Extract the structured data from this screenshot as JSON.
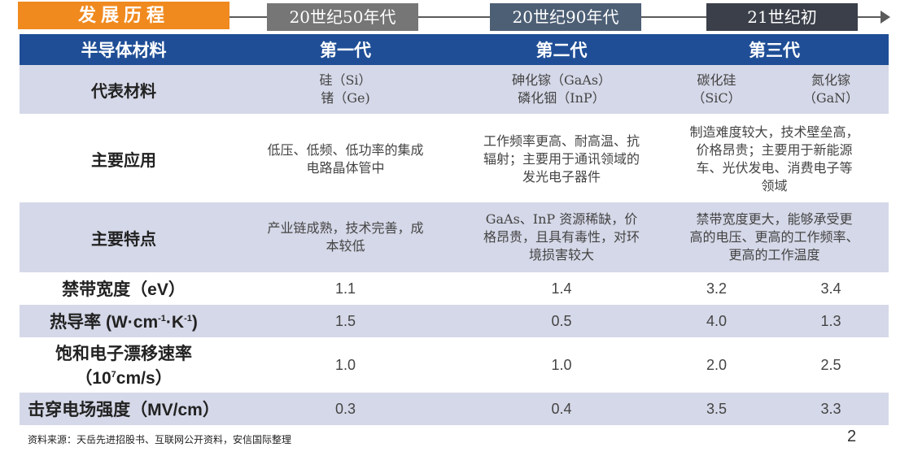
{
  "timeline": {
    "title": "发展历程",
    "periods": [
      "20世纪50年代",
      "20世纪90年代",
      "21世纪初"
    ]
  },
  "colors": {
    "accent": "#f08a1f",
    "header_bg": "#1f4e96",
    "stripe": "#d5d8e8",
    "period1": "#767676",
    "period2": "#4d5f75",
    "period3": "#3b3f49"
  },
  "table": {
    "header": {
      "col0": "半导体材料",
      "gen1": "第一代",
      "gen2": "第二代",
      "gen3": "第三代"
    },
    "rows": {
      "materials": {
        "label": "代表材料",
        "gen1": [
          "硅（Si）",
          "锗（Ge)"
        ],
        "gen2": [
          "砷化镓（GaAs）",
          "磷化铟（InP）"
        ],
        "gen3a": [
          "碳化硅",
          "（SiC）"
        ],
        "gen3b": [
          "氮化镓",
          "（GaN）"
        ]
      },
      "applications": {
        "label": "主要应用",
        "gen1": [
          "低压、低频、低功率的集成",
          "电路晶体管中"
        ],
        "gen2": [
          "工作频率更高、耐高温、抗",
          "辐射；主要用于通讯领域的",
          "发光电子器件"
        ],
        "gen3": [
          "制造难度较大，技术壁垒高，",
          "价格昂贵；主要用于新能源",
          "车、光伏发电、消费电子等",
          "领域"
        ]
      },
      "features": {
        "label": "主要特点",
        "gen1": [
          "产业链成熟，技术完善，成",
          "本较低"
        ],
        "gen2": [
          "GaAs、InP 资源稀缺，价",
          "格昂贵，且具有毒性，对环",
          "境损害较大"
        ],
        "gen3": [
          "禁带宽度更大，能够承受更",
          "高的电压、更高的工作频率、",
          "更高的工作温度"
        ]
      },
      "bandgap": {
        "label": "禁带宽度（eV）",
        "values": [
          "1.1",
          "1.4",
          "3.2",
          "3.4"
        ]
      },
      "thermal": {
        "label_pre": "热导率 (W·cm",
        "sup1": "-1",
        "label_mid": "·K",
        "sup2": "-1",
        "label_post": ")",
        "values": [
          "1.5",
          "0.5",
          "4.0",
          "1.3"
        ]
      },
      "drift": {
        "label_line1": "饱和电子漂移速率",
        "label_line2_pre": "（10",
        "label_sup": "7",
        "label_line2_post": "cm/s）",
        "values": [
          "1.0",
          "1.0",
          "2.0",
          "2.5"
        ]
      },
      "breakdown": {
        "label": "击穿电场强度（MV/cm）",
        "values": [
          "0.3",
          "0.4",
          "3.5",
          "3.3"
        ]
      }
    }
  },
  "footer": {
    "source": "资料来源：天岳先进招股书、互联网公开资料，安信国际整理",
    "page": "2"
  }
}
